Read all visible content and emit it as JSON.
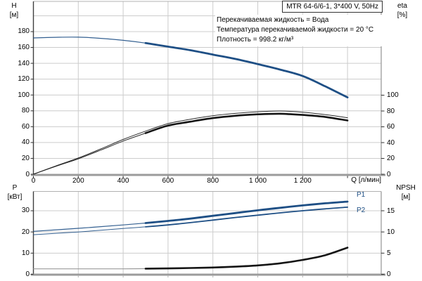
{
  "header": {
    "title": "MTR 64-6/6-1, 3*400 V, 50Hz",
    "info_lines": [
      "Перекачиваемая жидкость = Вода",
      "Температура перекачиваемой жидкости = 20 °C",
      "Плотность = 998.2 кг/м³"
    ]
  },
  "axes": {
    "top_left": {
      "name": "H",
      "unit": "[м]",
      "ticks": [
        0,
        20,
        40,
        60,
        80,
        100,
        120,
        140,
        160,
        180
      ]
    },
    "top_right": {
      "name": "eta",
      "unit": "[%]",
      "ticks": [
        0,
        20,
        40,
        60,
        80,
        100
      ]
    },
    "x": {
      "label": "Q [л/мин]",
      "ticks": [
        {
          "q": 0,
          "label": "0"
        },
        {
          "q": 200,
          "label": "200"
        },
        {
          "q": 400,
          "label": "400"
        },
        {
          "q": 600,
          "label": "600"
        },
        {
          "q": 800,
          "label": "800"
        },
        {
          "q": 1000,
          "label": "1 000"
        },
        {
          "q": 1200,
          "label": "1 200"
        }
      ]
    },
    "bottom_left": {
      "name": "P",
      "unit": "[кВт]",
      "ticks": [
        0,
        10,
        20,
        30
      ]
    },
    "bottom_right": {
      "name": "NPSH",
      "unit": "[м]",
      "ticks": [
        0,
        5,
        10,
        15
      ]
    }
  },
  "curve_labels": {
    "p1": "P1",
    "p2": "P2"
  },
  "colors": {
    "curve_blue": "#1E4F85",
    "curve_black": "#141414",
    "curve_gray": "#8f8f8f",
    "grid": "#cccccc",
    "frame": "#9a9a9a",
    "axis_dark": "#3f3f3f",
    "axis_thick": "#9b9b9b",
    "tick": "#333333"
  },
  "chart_data": [
    {
      "type": "line",
      "title": "Pump curve H and efficiency vs flow",
      "xlabel": "Q [л/мин]",
      "ylabel_left": "H [м]",
      "ylabel_right": "eta [%]",
      "xlim": [
        0,
        1550
      ],
      "ylim_left": [
        0,
        200
      ],
      "ylim_right": [
        0,
        100
      ],
      "grid": true,
      "x_gridlines": [
        200,
        400,
        600,
        800,
        1000,
        1200,
        1400
      ],
      "left_gridlines": [
        20,
        40,
        60,
        80,
        100,
        120,
        140,
        160,
        180,
        200
      ],
      "series": [
        {
          "name": "H",
          "axis": "H",
          "color_key": "curve_blue",
          "bold_from": 500,
          "thin_width": 1.2,
          "bold_width": 2.8,
          "points": [
            [
              0,
              172
            ],
            [
              100,
              172.8
            ],
            [
              200,
              173
            ],
            [
              300,
              171.5
            ],
            [
              400,
              169
            ],
            [
              500,
              165.5
            ],
            [
              600,
              161
            ],
            [
              700,
              156.5
            ],
            [
              800,
              151
            ],
            [
              900,
              145.5
            ],
            [
              1000,
              139
            ],
            [
              1100,
              132
            ],
            [
              1200,
              124
            ],
            [
              1300,
              111
            ],
            [
              1400,
              97
            ]
          ]
        },
        {
          "name": "eta_pump",
          "axis": "eta",
          "color_key": "curve_black",
          "thin_width": 1.0,
          "points": [
            [
              0,
              0
            ],
            [
              100,
              10.5
            ],
            [
              200,
              20.5
            ],
            [
              300,
              32
            ],
            [
              400,
              44
            ],
            [
              500,
              54.5
            ],
            [
              600,
              64
            ],
            [
              700,
              69.5
            ],
            [
              800,
              74
            ],
            [
              900,
              77
            ],
            [
              1000,
              79
            ],
            [
              1100,
              80
            ],
            [
              1200,
              78.5
            ],
            [
              1300,
              75.5
            ],
            [
              1400,
              71.5
            ]
          ]
        },
        {
          "name": "eta_pump_motor",
          "axis": "eta",
          "color_key": "curve_black",
          "bold_from": 500,
          "thin_width": 1.0,
          "bold_width": 2.6,
          "points": [
            [
              0,
              0
            ],
            [
              100,
              10
            ],
            [
              200,
              19.5
            ],
            [
              300,
              30.5
            ],
            [
              400,
              42
            ],
            [
              500,
              52
            ],
            [
              600,
              61.5
            ],
            [
              700,
              66.5
            ],
            [
              800,
              71
            ],
            [
              900,
              74
            ],
            [
              1000,
              75.8
            ],
            [
              1100,
              76.5
            ],
            [
              1200,
              75
            ],
            [
              1300,
              72.5
            ],
            [
              1400,
              68
            ]
          ]
        }
      ]
    },
    {
      "type": "line",
      "title": "Power and NPSH vs flow",
      "xlabel": "Q [л/мин]",
      "ylabel_left": "P [кВт]",
      "ylabel_right": "NPSH [м]",
      "xlim": [
        0,
        1550
      ],
      "ylim_left": [
        0,
        39
      ],
      "ylim_right": [
        0,
        19.5
      ],
      "grid": true,
      "x_gridlines": [
        200,
        400,
        600,
        800,
        1000,
        1200,
        1400
      ],
      "left_gridlines": [
        10,
        20,
        30
      ],
      "series": [
        {
          "name": "P1",
          "axis": "P",
          "color_key": "curve_blue",
          "bold_from": 500,
          "thin_width": 1.2,
          "bold_width": 2.8,
          "points": [
            [
              0,
              20.3
            ],
            [
              200,
              21.7
            ],
            [
              400,
              23.3
            ],
            [
              500,
              24.2
            ],
            [
              600,
              25.2
            ],
            [
              700,
              26.3
            ],
            [
              800,
              27.6
            ],
            [
              900,
              28.9
            ],
            [
              1000,
              30.2
            ],
            [
              1100,
              31.4
            ],
            [
              1200,
              32.5
            ],
            [
              1300,
              33.5
            ],
            [
              1400,
              34.3
            ]
          ]
        },
        {
          "name": "P2",
          "axis": "P",
          "color_key": "curve_blue",
          "bold_from": 500,
          "thin_width": 1.0,
          "bold_width": 1.8,
          "points": [
            [
              0,
              18.7
            ],
            [
              200,
              20.0
            ],
            [
              400,
              21.6
            ],
            [
              500,
              22.4
            ],
            [
              600,
              23.3
            ],
            [
              700,
              24.4
            ],
            [
              800,
              25.6
            ],
            [
              900,
              26.8
            ],
            [
              1000,
              27.9
            ],
            [
              1100,
              29.0
            ],
            [
              1200,
              30.0
            ],
            [
              1300,
              30.9
            ],
            [
              1400,
              31.7
            ]
          ]
        },
        {
          "name": "NPSH",
          "axis": "NPSH",
          "color_key": "curve_black",
          "thin_color_key": "curve_gray",
          "bold_from": 500,
          "thin_width": 1.2,
          "bold_width": 2.6,
          "points": [
            [
              0,
              1.3
            ],
            [
              200,
              1.3
            ],
            [
              400,
              1.3
            ],
            [
              500,
              1.35
            ],
            [
              600,
              1.4
            ],
            [
              700,
              1.5
            ],
            [
              800,
              1.6
            ],
            [
              900,
              1.8
            ],
            [
              1000,
              2.1
            ],
            [
              1100,
              2.6
            ],
            [
              1200,
              3.4
            ],
            [
              1300,
              4.5
            ],
            [
              1400,
              6.3
            ]
          ]
        }
      ]
    }
  ]
}
